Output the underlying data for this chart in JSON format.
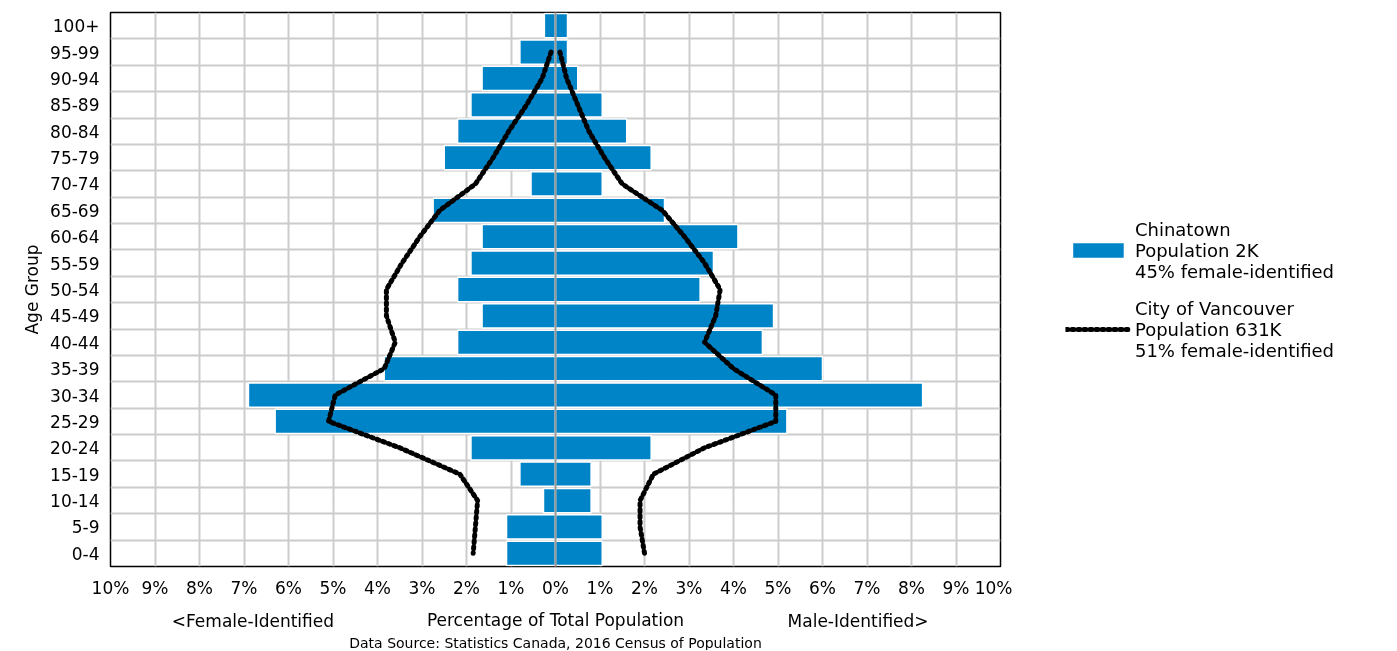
{
  "chart_data": {
    "type": "bar",
    "orientation": "horizontal",
    "categories": [
      "100+",
      "95-99",
      "90-94",
      "85-89",
      "80-84",
      "75-79",
      "70-74",
      "65-69",
      "60-64",
      "55-59",
      "50-54",
      "45-49",
      "40-44",
      "35-39",
      "30-34",
      "25-29",
      "20-24",
      "15-19",
      "10-14",
      "5-9",
      "0-4"
    ],
    "series": [
      {
        "name": "Chinatown\nPopulation 2K\n45% female-identified",
        "color": "#0084c8",
        "values": [
          -0.25,
          -0.8,
          -1.65,
          -1.9,
          -2.2,
          -2.5,
          -0.55,
          -2.75,
          -1.65,
          -1.9,
          -2.2,
          -1.65,
          -2.2,
          -3.85,
          -6.9,
          -6.3,
          -1.9,
          -0.8,
          -0.27,
          -1.1,
          -1.1
        ]
      },
      {
        "color": "#0084c8",
        "values": [
          0.27,
          0.27,
          0.5,
          1.05,
          1.6,
          2.15,
          1.05,
          2.45,
          4.1,
          3.55,
          3.25,
          4.9,
          4.65,
          6.0,
          8.25,
          5.2,
          2.15,
          0.8,
          0.8,
          1.05,
          1.05
        ]
      },
      {
        "type": "line",
        "name": "City of Vancouver\nPopulation 631K\n51% female-identified",
        "color": "#000000",
        "values": [
          null,
          -0.1,
          -0.3,
          -0.65,
          -1.05,
          -1.4,
          -1.8,
          -2.6,
          -3.05,
          -3.45,
          -3.8,
          -3.8,
          -3.6,
          -3.85,
          -4.95,
          -5.1,
          -3.5,
          -2.15,
          -1.75,
          -1.8,
          -1.85
        ]
      },
      {
        "type": "line",
        "color": "#000000",
        "values": [
          null,
          0.1,
          0.25,
          0.5,
          0.75,
          1.1,
          1.5,
          2.4,
          2.9,
          3.35,
          3.7,
          3.6,
          3.35,
          4.0,
          4.95,
          4.95,
          3.35,
          2.2,
          1.9,
          1.9,
          2.0
        ]
      }
    ],
    "line_style": "dotted",
    "stacked": true,
    "xlim": [
      -10,
      10
    ],
    "xticks": [
      {
        "value": -10,
        "label": "10%"
      },
      {
        "value": -9,
        "label": "9%"
      },
      {
        "value": -8,
        "label": "8%"
      },
      {
        "value": -7,
        "label": "7%"
      },
      {
        "value": -6,
        "label": "6%"
      },
      {
        "value": -5,
        "label": "5%"
      },
      {
        "value": -4,
        "label": "4%"
      },
      {
        "value": -3,
        "label": "3%"
      },
      {
        "value": -2,
        "label": "2%"
      },
      {
        "value": -1,
        "label": "1%"
      },
      {
        "value": 0,
        "label": "0%"
      },
      {
        "value": 1,
        "label": "1%"
      },
      {
        "value": 2,
        "label": "2%"
      },
      {
        "value": 3,
        "label": "3%"
      },
      {
        "value": 4,
        "label": "4%"
      },
      {
        "value": 5,
        "label": "5%"
      },
      {
        "value": 6,
        "label": "6%"
      },
      {
        "value": 7,
        "label": "7%"
      },
      {
        "value": 8,
        "label": "8%"
      },
      {
        "value": 9,
        "label": "9%"
      },
      {
        "value": 10,
        "label": "10%"
      }
    ],
    "ylabel": "Age Group",
    "xlabel": "Percentage of Total Population",
    "annotations": [
      "<Female-Identified",
      "Male-Identified>",
      "Data Source: Statistics Canada, 2016 Census of Population"
    ],
    "grid": true,
    "legend": "right"
  }
}
